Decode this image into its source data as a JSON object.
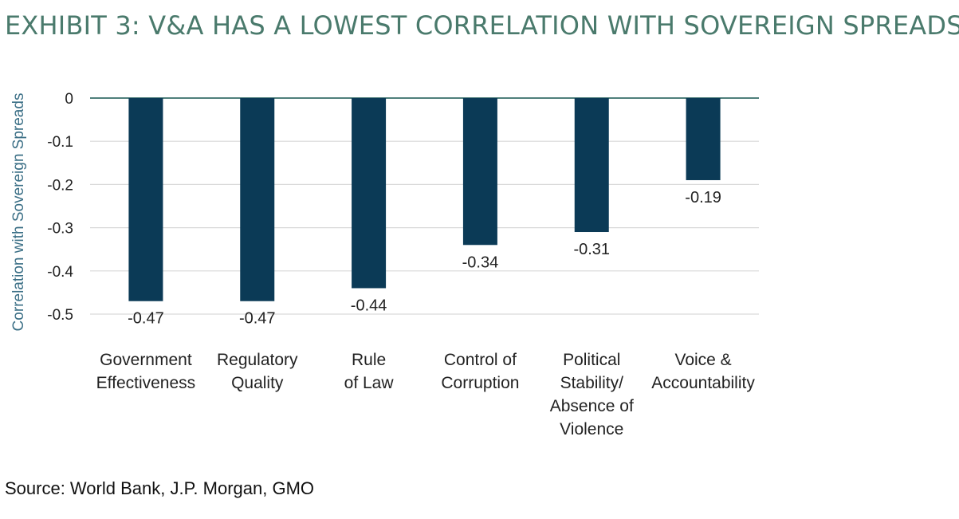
{
  "title": "EXHIBIT 3: V&A HAS A LOWEST CORRELATION WITH SOVEREIGN SPREADS",
  "source": "Source: World Bank, J.P. Morgan, GMO",
  "colors": {
    "title": "#4a7a6c",
    "bar": "#0b3a56",
    "grid": "#d9d9d9",
    "zero_line": "#4f7f7b",
    "y_label": "#3b6f86",
    "text": "#222222"
  },
  "chart_data": {
    "type": "bar",
    "title": "EXHIBIT 3: V&A HAS A LOWEST CORRELATION WITH SOVEREIGN SPREADS",
    "xlabel": "",
    "ylabel": "Correlation with Sovereign Spreads",
    "categories": [
      [
        "Government",
        "Effectiveness"
      ],
      [
        "Regulatory",
        "Quality"
      ],
      [
        "Rule",
        "of Law"
      ],
      [
        "Control of",
        "Corruption"
      ],
      [
        "Political",
        "Stability/",
        "Absence of",
        "Violence"
      ],
      [
        "Voice &",
        "Accountability"
      ]
    ],
    "values": [
      -0.47,
      -0.47,
      -0.44,
      -0.34,
      -0.31,
      -0.19
    ],
    "value_labels": [
      "-0.47",
      "-0.47",
      "-0.44",
      "-0.34",
      "-0.31",
      "-0.19"
    ],
    "ylim": [
      -0.5,
      0
    ],
    "yticks": [
      0,
      -0.1,
      -0.2,
      -0.3,
      -0.4,
      -0.5
    ],
    "ytick_labels": [
      "0",
      "-0.1",
      "-0.2",
      "-0.3",
      "-0.4",
      "-0.5"
    ],
    "grid": true,
    "legend": "none"
  }
}
